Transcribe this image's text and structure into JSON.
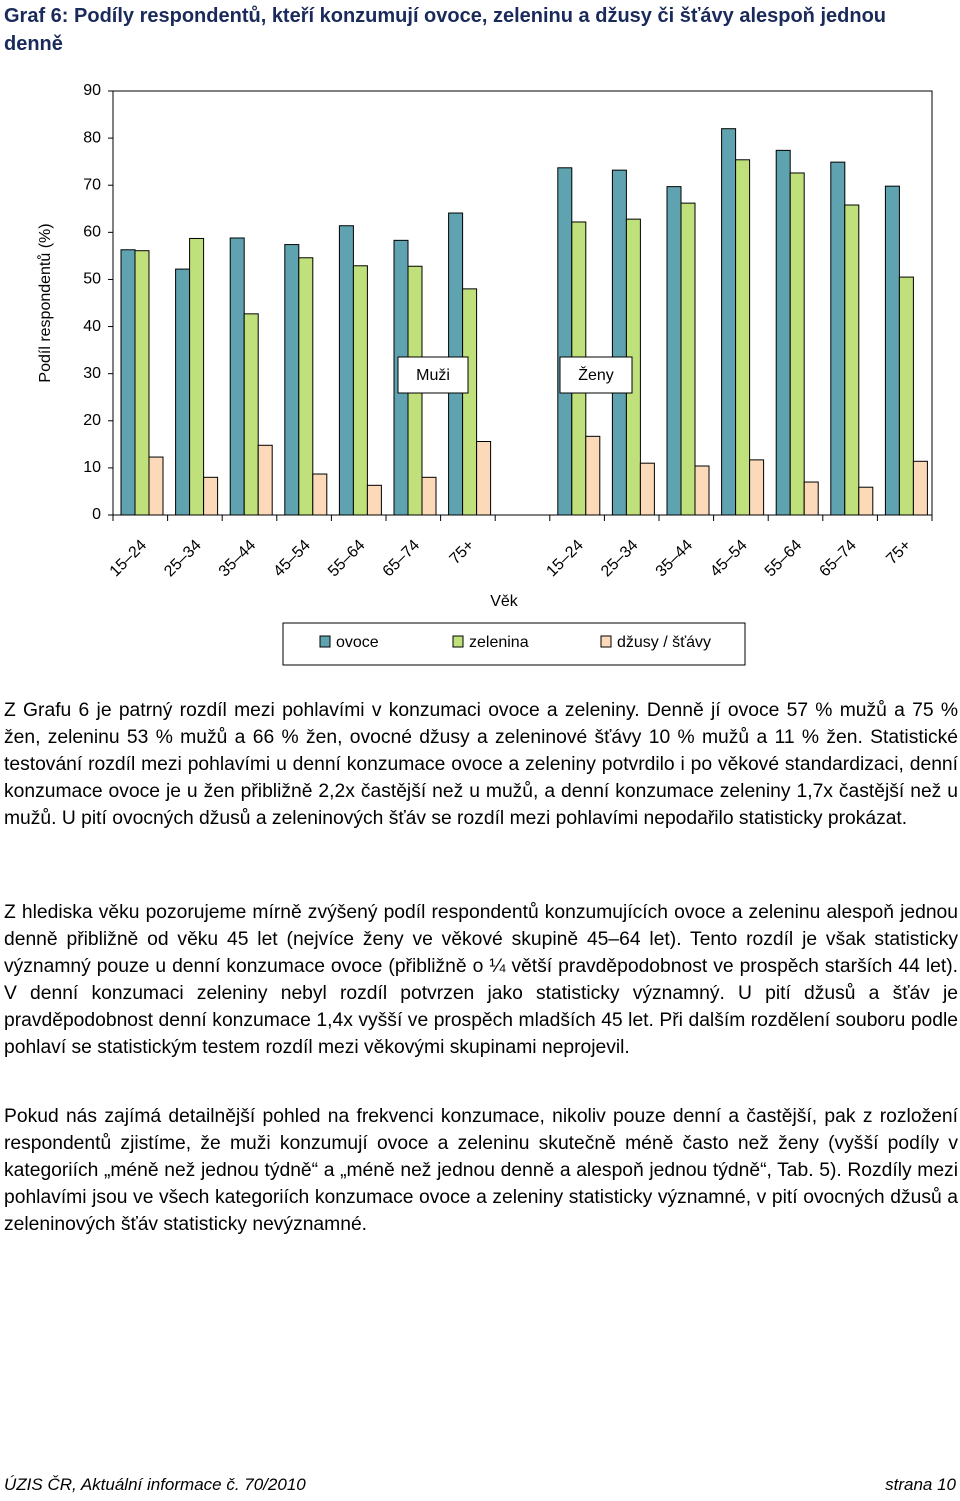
{
  "chart_data": {
    "type": "bar",
    "title": "Graf 6: Podíly respondentů, kteří konzumují ovoce, zeleninu a džusy či šťávy alespoň jednou denně",
    "y_label": "Podíl respondentů (%)",
    "x_label": "Věk",
    "annotations": [
      "Muži",
      "Ženy"
    ],
    "categories": [
      "15–24",
      "25–34",
      "35–44",
      "45–54",
      "55–64",
      "65–74",
      "75+",
      null,
      "15–24",
      "25–34",
      "35–44",
      "45–54",
      "55–64",
      "65–74",
      "75+"
    ],
    "series": [
      {
        "name": "ovoce",
        "color": "#5fa3b0",
        "values": [
          56.3,
          52.2,
          58.8,
          57.4,
          61.4,
          58.3,
          64.1,
          null,
          73.7,
          73.2,
          69.7,
          82.0,
          77.4,
          74.9,
          69.8
        ]
      },
      {
        "name": "zelenina",
        "color": "#bfe07a",
        "values": [
          56.1,
          58.7,
          42.7,
          54.6,
          52.9,
          52.8,
          48.0,
          null,
          62.2,
          62.8,
          66.2,
          75.4,
          72.6,
          65.8,
          50.5
        ]
      },
      {
        "name": "džusy / šťávy",
        "color": "#fcd9b8",
        "values": [
          12.3,
          8.0,
          14.8,
          8.7,
          6.3,
          8.0,
          15.6,
          null,
          16.7,
          11.0,
          10.4,
          11.7,
          7.0,
          5.9,
          11.4
        ]
      }
    ],
    "ylim": [
      0,
      90
    ],
    "yticks": [
      0,
      10,
      20,
      30,
      40,
      50,
      60,
      70,
      80,
      90
    ],
    "grid": false
  },
  "paragraphs": [
    "Z Grafu 6 je patrný rozdíl mezi pohlavími v konzumaci ovoce a zeleniny. Denně jí ovoce 57 % mužů a 75 % žen, zeleninu 53 % mužů a 66 % žen, ovocné džusy a zeleninové šťávy 10 % mužů a 11 % žen. Statistické testování rozdíl mezi pohlavími u denní konzumace ovoce a zeleniny potvrdilo i po věkové standardizaci, denní konzumace ovoce je u žen přibližně 2,2x častější než u mužů, a denní konzumace zeleniny 1,7x častější než u mužů. U pití ovocných džusů a zeleninových šťáv se rozdíl mezi pohlavími nepodařilo statisticky prokázat.",
    "Z hlediska věku pozorujeme mírně zvýšený podíl respondentů konzumujících ovoce a zeleninu alespoň jednou denně přibližně od věku 45 let (nejvíce ženy ve věkové skupině 45–64 let). Tento rozdíl je však statisticky významný pouze u denní konzumace ovoce (přibližně o ¼ větší pravděpodobnost ve prospěch starších 44 let). V denní konzumaci zeleniny nebyl rozdíl potvrzen jako statisticky významný. U pití džusů a šťáv je pravděpodobnost denní konzumace 1,4x vyšší ve prospěch mladších 45 let. Při dalším rozdělení souboru podle pohlaví se statistickým testem rozdíl mezi věkovými skupinami neprojevil.",
    "Pokud nás zajímá detailnější pohled na frekvenci konzumace, nikoliv pouze denní a častější, pak z rozložení respondentů zjistíme, že muži konzumují ovoce a zeleninu skutečně méně často než ženy (vyšší podíly v kategoriích „méně než jednou týdně“ a „méně než jednou denně a alespoň jednou týdně“, Tab. 5). Rozdíly mezi pohlavími jsou ve všech kategoriích konzumace ovoce a zeleniny statisticky významné, v pití ovocných džusů a zeleninových šťáv statisticky nevýznamné."
  ],
  "footer": {
    "left": "ÚZIS ČR, Aktuální informace č. 70/2010",
    "right": "strana 10"
  }
}
